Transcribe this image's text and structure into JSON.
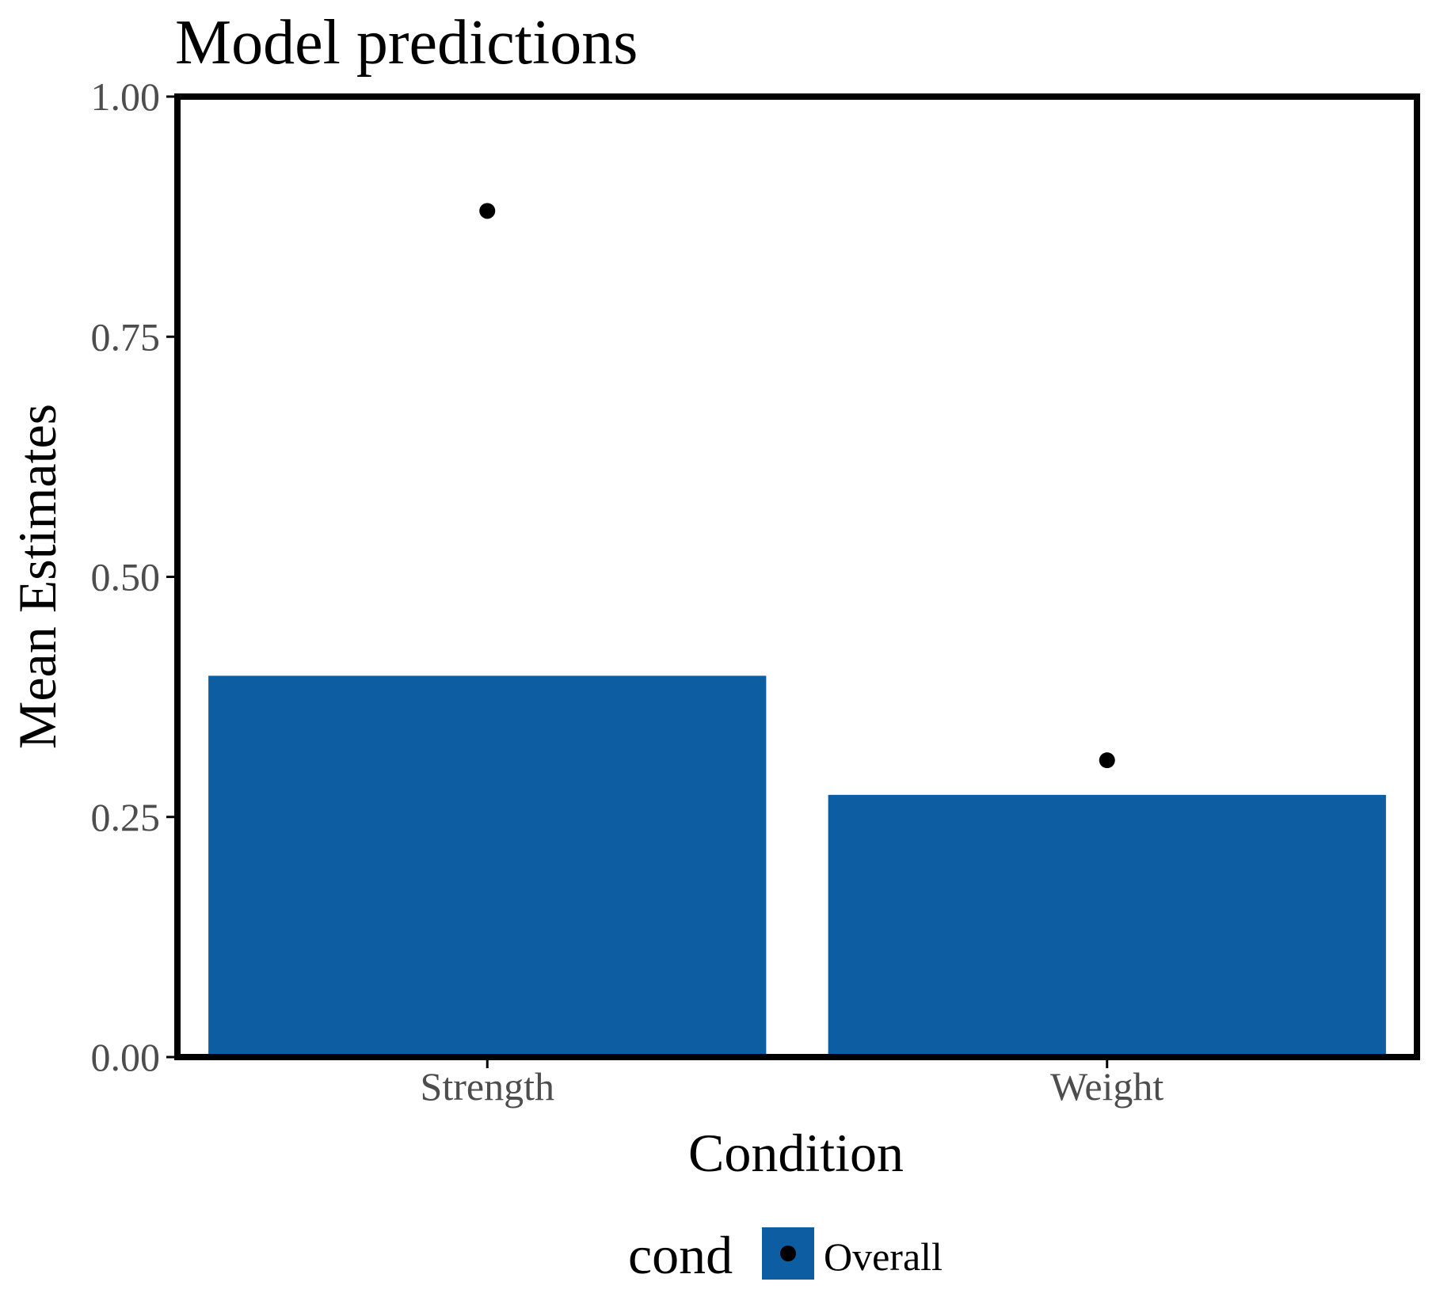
{
  "chart_data": {
    "type": "bar",
    "title": "Model predictions",
    "xlabel": "Condition",
    "ylabel": "Mean Estimates",
    "categories": [
      "Strength",
      "Weight"
    ],
    "series": [
      {
        "name": "Overall",
        "values": [
          0.397,
          0.273
        ]
      }
    ],
    "points": {
      "values": [
        0.881,
        0.309
      ]
    },
    "ylim": [
      0,
      1
    ],
    "yticks": [
      "0.00",
      "0.25",
      "0.50",
      "0.75",
      "1.00"
    ],
    "grid": false,
    "legend": {
      "title": "cond",
      "entries": [
        "Overall"
      ],
      "position": "bottom"
    },
    "colors": {
      "bar": "#0c5da2",
      "point": "#000000",
      "panel_border": "#000000"
    }
  }
}
